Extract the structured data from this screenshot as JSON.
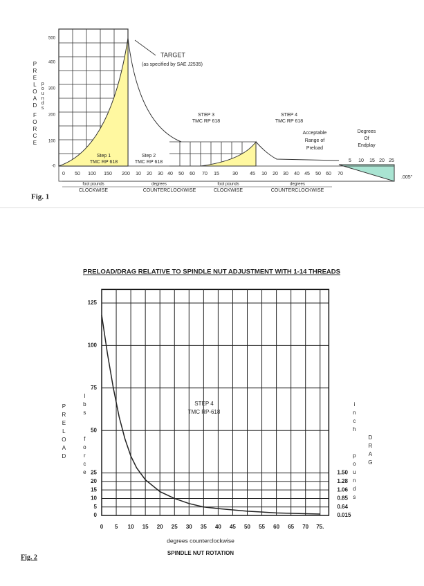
{
  "figure_1": {
    "label": "Fig. 1",
    "y_axis_title": [
      "PRELOAD",
      "FORCE"
    ],
    "y_axis_unit": "pounds",
    "y_tick_labels": [
      "500",
      "400",
      "300",
      "200",
      "100",
      "-0"
    ],
    "target": "TARGET",
    "target_note": "(as specified by SAE J2535)",
    "steps": [
      {
        "name": "Step 1",
        "ref": "TMC RP 618"
      },
      {
        "name": "Step 2",
        "ref": "TMC RP 618"
      },
      {
        "name": "STEP 3",
        "ref": "TMC RP 618"
      },
      {
        "name": "STEP 4",
        "ref": "TMC RP 618"
      }
    ],
    "acceptable": [
      "Acceptable",
      "Range of",
      "Preload"
    ],
    "endplay": [
      "Degrees",
      "Of",
      "Endplay"
    ],
    "scale_labels": [
      "0",
      "50",
      "100",
      "150",
      "200",
      "10",
      "20",
      "30",
      "40",
      "50",
      "60",
      "70",
      "15",
      "30",
      "45",
      "10",
      "20",
      "30",
      "40",
      "45",
      "50",
      "60",
      "70"
    ],
    "endplay_labels": [
      "5",
      "10",
      "15",
      "20",
      "25"
    ],
    "endplay_depth": ".005\"",
    "units": [
      "foot pounds",
      "degrees",
      "foot pounds",
      "degrees"
    ],
    "directions": [
      "CLOCKWISE",
      "COUNTERCLOCKWISE",
      "CLOCKWISE",
      "COUNTERCLOCKWISE"
    ]
  },
  "chart_data": {
    "type": "line",
    "title": "PRELOAD/DRAG RELATIVE TO SPINDLE NUT ADJUSTMENT WITH 1-14 THREADS",
    "annotation": [
      "STEP 4",
      "TMC RP-618"
    ],
    "y_title": "PRELOAD",
    "y_unit": "lbs force",
    "y2_unit": "inch pounds",
    "y2_title": "DRAG",
    "x_title": "degrees counterclockwise",
    "x_subtitle": "SPINDLE NUT ROTATION",
    "label": "Fig. 2",
    "x": [
      0,
      2,
      4,
      6,
      8,
      10,
      12,
      15,
      20,
      25,
      30,
      35,
      40,
      50,
      60,
      70,
      75
    ],
    "series": [
      {
        "color": "#222222",
        "values": [
          118,
          95,
          75,
          58,
          45,
          35,
          28,
          21,
          14,
          10,
          7,
          5,
          4,
          2.5,
          1.5,
          1,
          0.8
        ]
      }
    ],
    "xlim": [
      0,
      78
    ],
    "ylim": [
      0,
      133
    ],
    "xticks": [
      0,
      5,
      10,
      15,
      20,
      25,
      30,
      35,
      40,
      45,
      50,
      55,
      60,
      65,
      70,
      {
        "value": 75,
        "label": "75."
      }
    ],
    "yticks": [
      0,
      5,
      10,
      15,
      20,
      25,
      50,
      75,
      100,
      125
    ],
    "drag_labels": [
      "0.015",
      "0.64",
      "0.85",
      "1.06",
      "1.28",
      "1.50"
    ],
    "grid": true
  }
}
